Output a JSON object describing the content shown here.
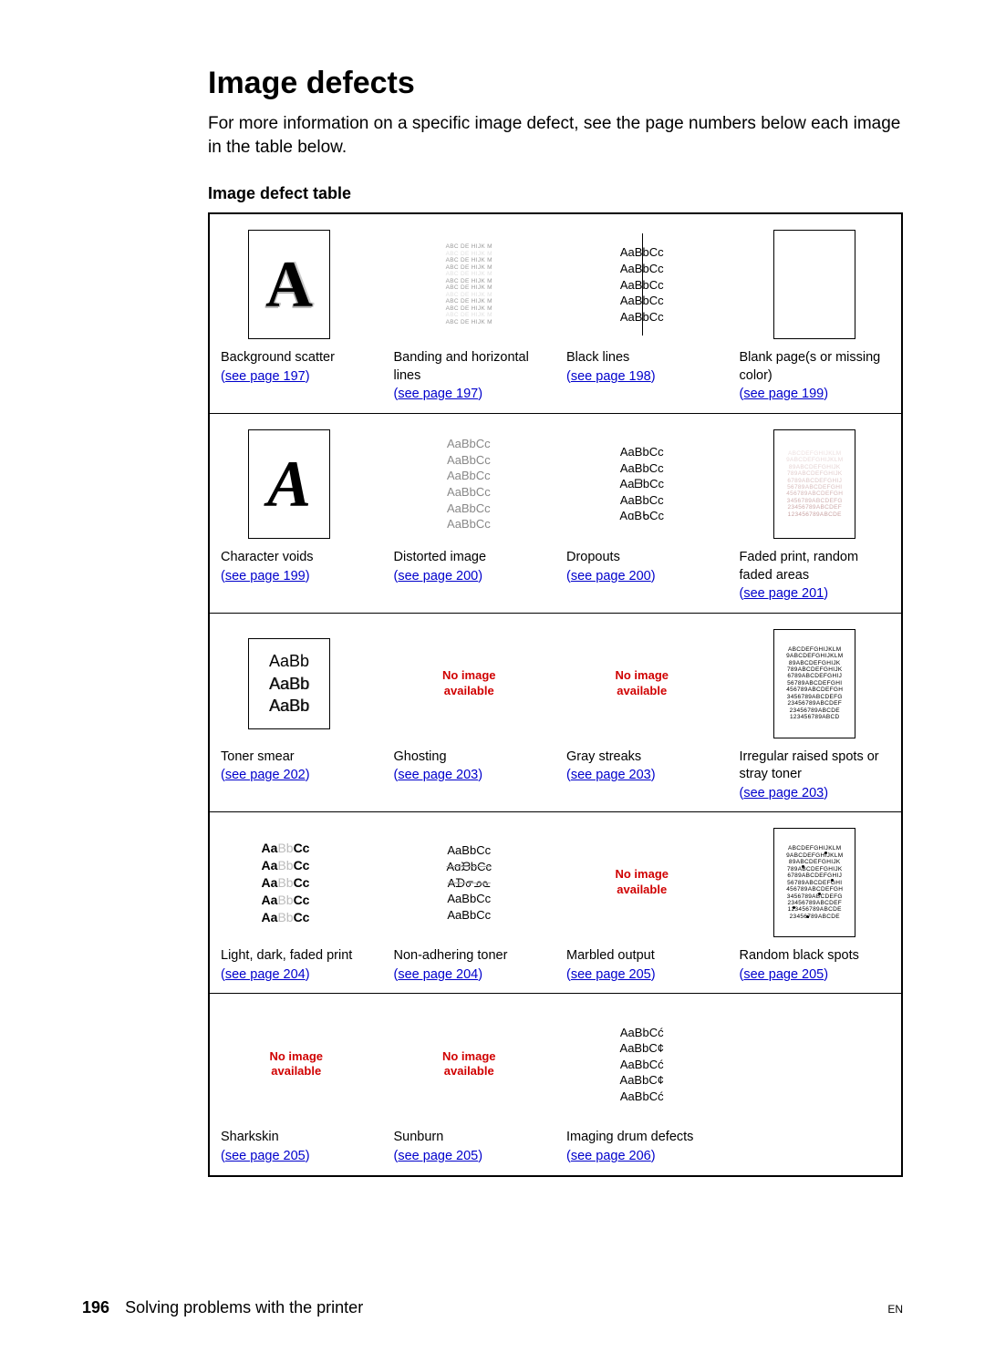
{
  "title": "Image defects",
  "intro": "For more information on a specific image defect, see the page numbers below each image in the table below.",
  "table_title": "Image defect table",
  "no_image": "No image\navailable",
  "sample": {
    "aabb": "AaBbCc",
    "aabbshort": "AaBb",
    "bigA": "A",
    "alpha1": "ABCDEFGHIJKLM",
    "alpha2": "9ABCDEFGHIJKLM",
    "alpha3": "89ABCDEFGHIJK",
    "alpha4": "789ABCDEFGHIJK",
    "alpha5": "6789ABCDEFGHIJ",
    "alpha6": "56789ABCDEFGHI",
    "alpha7": "456789ABCDEFGH",
    "alpha8": "3456789ABCDEFG",
    "alpha9": "23456789ABCDEF",
    "alpha10": "123456789ABCDE",
    "alpha11": "23456789ABCDE",
    "alpha12": "123456789ABCD"
  },
  "cells": [
    [
      {
        "label": "Background scatter",
        "link": "see page 197",
        "kind": "bigA-scatter"
      },
      {
        "label": "Banding and horizontal lines",
        "link": "see page 197",
        "kind": "tiny-bands"
      },
      {
        "label": "Black lines",
        "link": "see page 198",
        "kind": "aabb-vline"
      },
      {
        "label": "Blank page(s or missing color)",
        "link": "see page 199",
        "kind": "blank"
      }
    ],
    [
      {
        "label": "Character voids",
        "link": "see page 199",
        "kind": "bigA-void"
      },
      {
        "label": "Distorted image",
        "link": "see page 200",
        "kind": "aabb-distort"
      },
      {
        "label": "Dropouts",
        "link": "see page 200",
        "kind": "aabb-dropout"
      },
      {
        "label": "Faded print, random faded areas",
        "link": "see page 201",
        "kind": "tiny-fade"
      }
    ],
    [
      {
        "label": "Toner smear",
        "link": "see page 202",
        "kind": "aabb-smear"
      },
      {
        "label": "Ghosting",
        "link": "see page 203",
        "kind": "noimg"
      },
      {
        "label": "Gray streaks",
        "link": "see page 203",
        "kind": "noimg"
      },
      {
        "label": "Irregular raised spots or stray toner",
        "link": "see page 203",
        "kind": "tiny-spots"
      }
    ],
    [
      {
        "label": "Light, dark, faded print",
        "link": "see page 204",
        "kind": "aabb-lightdark"
      },
      {
        "label": "Non-adhering toner",
        "link": "see page 204",
        "kind": "aabb-nonadh"
      },
      {
        "label": "Marbled output",
        "link": "see page 205",
        "kind": "noimg"
      },
      {
        "label": "Random black spots",
        "link": "see page 205",
        "kind": "tiny-blackspots"
      }
    ],
    [
      {
        "label": "Sharkskin",
        "link": "see page 205",
        "kind": "noimg"
      },
      {
        "label": "Sunburn",
        "link": "see page 205",
        "kind": "noimg"
      },
      {
        "label": "Imaging drum defects",
        "link": "see page 206",
        "kind": "aabb-drum"
      },
      {
        "label": "",
        "link": "",
        "kind": "empty"
      }
    ]
  ],
  "footer": {
    "page": "196",
    "section": "Solving problems with the printer",
    "lang": "EN"
  },
  "colors": {
    "link": "#0000cc",
    "noimg": "#d00000",
    "text": "#000000",
    "border": "#000000"
  }
}
